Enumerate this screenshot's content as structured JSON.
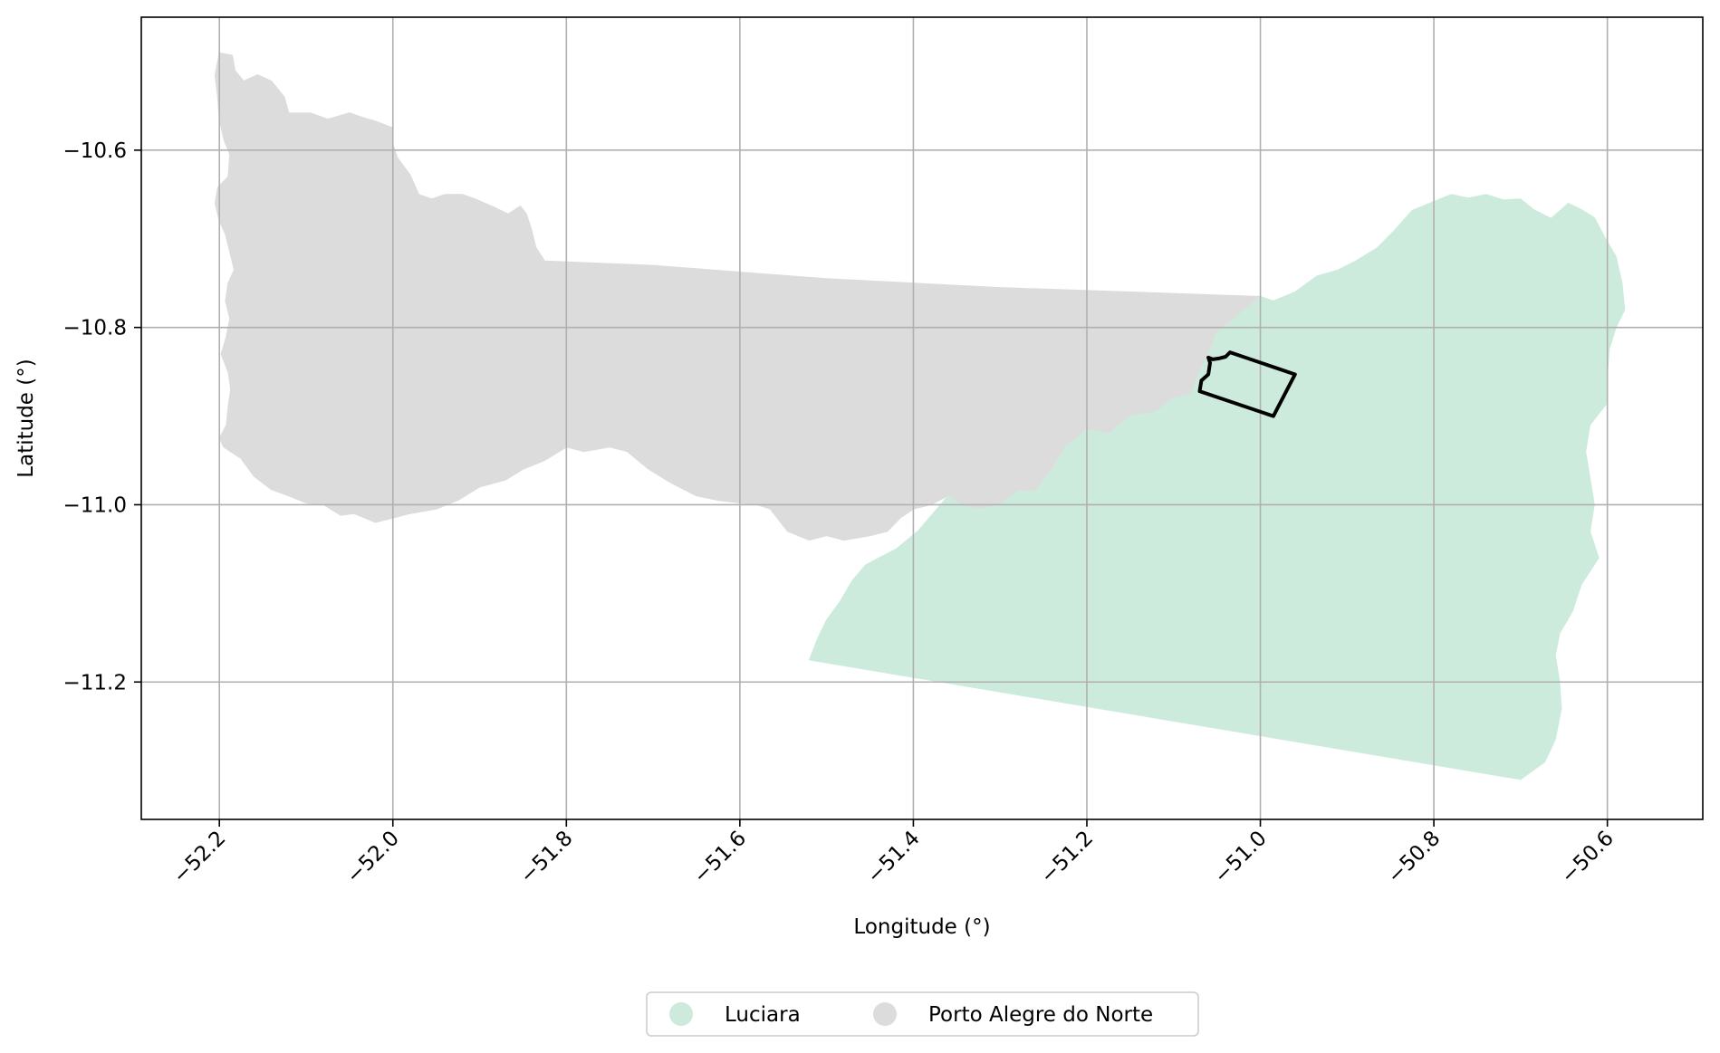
{
  "map": {
    "xlabel": "Longitude (°)",
    "ylabel": "Latitude (°)",
    "xlim": [
      -52.29,
      -50.49
    ],
    "ylim": [
      -11.355,
      -10.45
    ],
    "grid": true,
    "x_ticks": [
      {
        "value": -52.2,
        "label": "−52.2"
      },
      {
        "value": -52.0,
        "label": "−52.0"
      },
      {
        "value": -51.8,
        "label": "−51.8"
      },
      {
        "value": -51.6,
        "label": "−51.6"
      },
      {
        "value": -51.4,
        "label": "−51.4"
      },
      {
        "value": -51.2,
        "label": "−51.2"
      },
      {
        "value": -51.0,
        "label": "−51.0"
      },
      {
        "value": -50.8,
        "label": "−50.8"
      },
      {
        "value": -50.6,
        "label": "−50.6"
      }
    ],
    "y_ticks": [
      {
        "value": -10.6,
        "label": "−10.6"
      },
      {
        "value": -10.8,
        "label": "−10.8"
      },
      {
        "value": -11.0,
        "label": "−11.0"
      },
      {
        "value": -11.2,
        "label": "−11.2"
      }
    ],
    "regions": [
      {
        "name": "Porto Alegre do Norte",
        "color": "#dcdcdc",
        "boundary": [
          [
            -52.2,
            -10.49
          ],
          [
            -52.185,
            -10.493
          ],
          [
            -52.182,
            -10.51
          ],
          [
            -52.172,
            -10.522
          ],
          [
            -52.156,
            -10.515
          ],
          [
            -52.14,
            -10.522
          ],
          [
            -52.125,
            -10.54
          ],
          [
            -52.12,
            -10.558
          ],
          [
            -52.095,
            -10.558
          ],
          [
            -52.075,
            -10.565
          ],
          [
            -52.05,
            -10.558
          ],
          [
            -52.035,
            -10.563
          ],
          [
            -52.018,
            -10.568
          ],
          [
            -52.0,
            -10.575
          ],
          [
            -52.0,
            -10.593
          ],
          [
            -51.995,
            -10.608
          ],
          [
            -51.98,
            -10.628
          ],
          [
            -51.97,
            -10.65
          ],
          [
            -51.955,
            -10.655
          ],
          [
            -51.94,
            -10.65
          ],
          [
            -51.92,
            -10.65
          ],
          [
            -51.905,
            -10.655
          ],
          [
            -51.882,
            -10.665
          ],
          [
            -51.867,
            -10.672
          ],
          [
            -51.853,
            -10.663
          ],
          [
            -51.846,
            -10.672
          ],
          [
            -51.84,
            -10.69
          ],
          [
            -51.835,
            -10.71
          ],
          [
            -51.825,
            -10.725
          ],
          [
            -51.7,
            -10.73
          ],
          [
            -51.5,
            -10.745
          ],
          [
            -51.3,
            -10.755
          ],
          [
            -51.0,
            -10.765
          ],
          [
            -51.03,
            -10.79
          ],
          [
            -51.05,
            -10.805
          ],
          [
            -51.06,
            -10.83
          ],
          [
            -51.07,
            -10.85
          ],
          [
            -51.08,
            -10.875
          ],
          [
            -51.1,
            -10.88
          ],
          [
            -51.12,
            -10.895
          ],
          [
            -51.15,
            -10.9
          ],
          [
            -51.175,
            -10.92
          ],
          [
            -51.2,
            -10.915
          ],
          [
            -51.225,
            -10.935
          ],
          [
            -51.24,
            -10.96
          ],
          [
            -51.26,
            -10.985
          ],
          [
            -51.28,
            -10.985
          ],
          [
            -51.3,
            -11.0
          ],
          [
            -51.325,
            -11.005
          ],
          [
            -51.345,
            -11.0
          ],
          [
            -51.36,
            -10.99
          ],
          [
            -51.38,
            -11.0
          ],
          [
            -51.4,
            -11.005
          ],
          [
            -51.415,
            -11.015
          ],
          [
            -51.43,
            -11.03
          ],
          [
            -51.45,
            -11.035
          ],
          [
            -51.48,
            -11.04
          ],
          [
            -51.5,
            -11.035
          ],
          [
            -51.52,
            -11.04
          ],
          [
            -51.545,
            -11.03
          ],
          [
            -51.565,
            -11.005
          ],
          [
            -51.58,
            -11.0
          ],
          [
            -51.6,
            -10.998
          ],
          [
            -51.625,
            -10.995
          ],
          [
            -51.65,
            -10.99
          ],
          [
            -51.68,
            -10.975
          ],
          [
            -51.705,
            -10.96
          ],
          [
            -51.73,
            -10.94
          ],
          [
            -51.75,
            -10.935
          ],
          [
            -51.78,
            -10.94
          ],
          [
            -51.8,
            -10.935
          ],
          [
            -51.825,
            -10.95
          ],
          [
            -51.85,
            -10.96
          ],
          [
            -51.87,
            -10.972
          ],
          [
            -51.9,
            -10.98
          ],
          [
            -51.925,
            -10.995
          ],
          [
            -51.95,
            -11.005
          ],
          [
            -51.98,
            -11.01
          ],
          [
            -52.0,
            -11.015
          ],
          [
            -52.02,
            -11.02
          ],
          [
            -52.045,
            -11.01
          ],
          [
            -52.06,
            -11.012
          ],
          [
            -52.08,
            -11.0
          ],
          [
            -52.1,
            -10.998
          ],
          [
            -52.12,
            -10.99
          ],
          [
            -52.14,
            -10.983
          ],
          [
            -52.16,
            -10.968
          ],
          [
            -52.175,
            -10.948
          ],
          [
            -52.195,
            -10.935
          ],
          [
            -52.2,
            -10.925
          ],
          [
            -52.192,
            -10.91
          ],
          [
            -52.19,
            -10.89
          ],
          [
            -52.187,
            -10.87
          ],
          [
            -52.19,
            -10.85
          ],
          [
            -52.198,
            -10.83
          ],
          [
            -52.192,
            -10.81
          ],
          [
            -52.188,
            -10.79
          ],
          [
            -52.193,
            -10.77
          ],
          [
            -52.19,
            -10.75
          ],
          [
            -52.183,
            -10.735
          ],
          [
            -52.188,
            -10.715
          ],
          [
            -52.193,
            -10.695
          ],
          [
            -52.2,
            -10.68
          ],
          [
            -52.205,
            -10.66
          ],
          [
            -52.202,
            -10.642
          ],
          [
            -52.19,
            -10.63
          ],
          [
            -52.188,
            -10.605
          ],
          [
            -52.195,
            -10.588
          ],
          [
            -52.2,
            -10.565
          ],
          [
            -52.202,
            -10.54
          ],
          [
            -52.205,
            -10.515
          ]
        ]
      },
      {
        "name": "Luciara",
        "color": "#cdebdd",
        "boundary": [
          [
            -51.0,
            -10.765
          ],
          [
            -50.985,
            -10.77
          ],
          [
            -50.96,
            -10.76
          ],
          [
            -50.935,
            -10.742
          ],
          [
            -50.91,
            -10.735
          ],
          [
            -50.89,
            -10.725
          ],
          [
            -50.865,
            -10.71
          ],
          [
            -50.845,
            -10.69
          ],
          [
            -50.825,
            -10.668
          ],
          [
            -50.8,
            -10.658
          ],
          [
            -50.78,
            -10.65
          ],
          [
            -50.76,
            -10.654
          ],
          [
            -50.74,
            -10.65
          ],
          [
            -50.72,
            -10.656
          ],
          [
            -50.7,
            -10.655
          ],
          [
            -50.685,
            -10.667
          ],
          [
            -50.665,
            -10.677
          ],
          [
            -50.645,
            -10.66
          ],
          [
            -50.63,
            -10.667
          ],
          [
            -50.615,
            -10.676
          ],
          [
            -50.602,
            -10.7
          ],
          [
            -50.59,
            -10.72
          ],
          [
            -50.583,
            -10.75
          ],
          [
            -50.58,
            -10.78
          ],
          [
            -50.59,
            -10.8
          ],
          [
            -50.598,
            -10.825
          ],
          [
            -50.6,
            -10.855
          ],
          [
            -50.6,
            -10.885
          ],
          [
            -50.62,
            -10.91
          ],
          [
            -50.625,
            -10.94
          ],
          [
            -50.62,
            -10.97
          ],
          [
            -50.615,
            -11.0
          ],
          [
            -50.62,
            -11.03
          ],
          [
            -50.61,
            -11.06
          ],
          [
            -50.63,
            -11.09
          ],
          [
            -50.64,
            -11.12
          ],
          [
            -50.655,
            -11.145
          ],
          [
            -50.66,
            -11.17
          ],
          [
            -50.655,
            -11.2
          ],
          [
            -50.653,
            -11.23
          ],
          [
            -50.66,
            -11.265
          ],
          [
            -50.672,
            -11.29
          ],
          [
            -50.7,
            -11.31
          ],
          [
            -51.52,
            -11.175
          ],
          [
            -51.51,
            -11.15
          ],
          [
            -51.5,
            -11.13
          ],
          [
            -51.485,
            -11.11
          ],
          [
            -51.47,
            -11.085
          ],
          [
            -51.455,
            -11.068
          ],
          [
            -51.44,
            -11.06
          ],
          [
            -51.42,
            -11.05
          ],
          [
            -51.395,
            -11.03
          ],
          [
            -51.36,
            -10.99
          ],
          [
            -51.345,
            -11.0
          ],
          [
            -51.325,
            -11.005
          ],
          [
            -51.3,
            -11.0
          ],
          [
            -51.28,
            -10.985
          ],
          [
            -51.26,
            -10.985
          ],
          [
            -51.24,
            -10.96
          ],
          [
            -51.225,
            -10.935
          ],
          [
            -51.2,
            -10.915
          ],
          [
            -51.175,
            -10.92
          ],
          [
            -51.15,
            -10.9
          ],
          [
            -51.12,
            -10.895
          ],
          [
            -51.1,
            -10.88
          ],
          [
            -51.08,
            -10.875
          ],
          [
            -51.07,
            -10.85
          ],
          [
            -51.06,
            -10.83
          ],
          [
            -51.05,
            -10.805
          ],
          [
            -51.03,
            -10.79
          ]
        ]
      }
    ],
    "highlight_polygon": [
      [
        -51.035,
        -10.828
      ],
      [
        -50.96,
        -10.853
      ],
      [
        -50.985,
        -10.9
      ],
      [
        -51.07,
        -10.872
      ],
      [
        -51.068,
        -10.86
      ],
      [
        -51.06,
        -10.853
      ],
      [
        -51.058,
        -10.84
      ],
      [
        -51.06,
        -10.834
      ],
      [
        -51.055,
        -10.836
      ],
      [
        -51.048,
        -10.835
      ],
      [
        -51.04,
        -10.833
      ]
    ],
    "highlight_color": "#000000"
  },
  "legend": {
    "placement": "bottom-center",
    "items": [
      {
        "label": "Luciara",
        "color": "#cdebdd"
      },
      {
        "label": "Porto Alegre do Norte",
        "color": "#dcdcdc"
      }
    ]
  }
}
